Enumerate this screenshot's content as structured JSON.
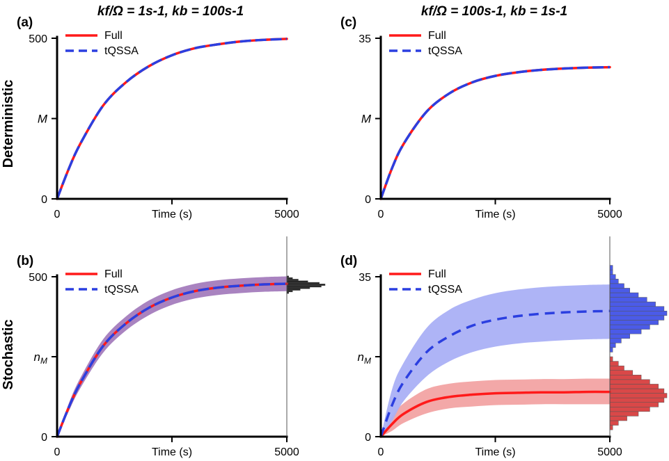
{
  "figure": {
    "column_titles": [
      {
        "line": "kf/Ω = 1s-1, kb = 100s-1"
      },
      {
        "line": "kf/Ω = 100s-1, kb = 1s-1"
      }
    ],
    "row_labels": [
      "Deterministic",
      "Stochastic"
    ]
  },
  "colors": {
    "full": "#ff1a1a",
    "tqssa": "#2b3fe0",
    "band_overlap": "#9a6db5",
    "band_full": "#f2a3a3",
    "band_tqssa": "#aab0f5",
    "hist_black": "#222222",
    "hist_blue": "#4b5be8",
    "hist_red": "#d94848"
  },
  "chart_data": [
    {
      "panel": "(a)",
      "type": "line",
      "title": "kf/Ω = 1s-1, kb = 100s-1",
      "xlabel": "Time (s)",
      "ylabel": "M",
      "xlim": [
        0,
        5000
      ],
      "ylim": [
        0,
        500
      ],
      "xticks": [
        "0",
        "5000"
      ],
      "yticks": [
        "0",
        "500"
      ],
      "legend": [
        "Full",
        "tQSSA"
      ],
      "legend_position": "top-left",
      "series": [
        {
          "name": "Full",
          "style": "solid",
          "x": [
            0,
            250,
            500,
            1000,
            1500,
            2000,
            2500,
            3000,
            3500,
            4000,
            4500,
            5000
          ],
          "y": [
            0,
            92,
            170,
            290,
            363,
            413,
            447,
            469,
            481,
            490,
            495,
            498
          ]
        },
        {
          "name": "tQSSA",
          "style": "dashed",
          "x": [
            0,
            250,
            500,
            1000,
            1500,
            2000,
            2500,
            3000,
            3500,
            4000,
            4500,
            5000
          ],
          "y": [
            0,
            92,
            170,
            290,
            363,
            413,
            447,
            469,
            481,
            490,
            495,
            498
          ]
        }
      ]
    },
    {
      "panel": "(b)",
      "type": "line",
      "xlabel": "Time (s)",
      "ylabel": "nM",
      "xlim": [
        0,
        5000
      ],
      "ylim": [
        0,
        500
      ],
      "xticks": [
        "0",
        "5000"
      ],
      "yticks": [
        "0",
        "500"
      ],
      "legend": [
        "Full",
        "tQSSA"
      ],
      "legend_position": "top-left",
      "series": [
        {
          "name": "Full",
          "style": "solid",
          "band": "overlap",
          "x": [
            0,
            250,
            500,
            1000,
            1500,
            2000,
            2500,
            3000,
            3500,
            4000,
            4500,
            5000
          ],
          "y": [
            0,
            90,
            166,
            283,
            354,
            403,
            435,
            455,
            466,
            472,
            476,
            478
          ],
          "band_low": [
            0,
            78,
            150,
            262,
            332,
            380,
            412,
            432,
            443,
            449,
            453,
            455
          ],
          "band_high": [
            0,
            102,
            182,
            304,
            376,
            426,
            458,
            478,
            489,
            495,
            499,
            501
          ]
        },
        {
          "name": "tQSSA",
          "style": "dashed",
          "x": [
            0,
            250,
            500,
            1000,
            1500,
            2000,
            2500,
            3000,
            3500,
            4000,
            4500,
            5000
          ],
          "y": [
            0,
            90,
            166,
            283,
            354,
            403,
            435,
            455,
            466,
            472,
            476,
            478
          ]
        }
      ],
      "histograms": [
        {
          "name": "Full/tQSSA (overlapping)",
          "color_key": "hist_black",
          "bins": [
            450,
            455,
            460,
            465,
            470,
            475,
            480,
            485,
            490,
            495,
            500
          ],
          "counts": [
            1,
            3,
            7,
            12,
            18,
            20,
            17,
            11,
            6,
            3,
            1
          ]
        }
      ]
    },
    {
      "panel": "(c)",
      "type": "line",
      "title": "kf/Ω = 100s-1, kb = 1s-1",
      "xlabel": "Time (s)",
      "ylabel": "M",
      "xlim": [
        0,
        5000
      ],
      "ylim": [
        0,
        35
      ],
      "xticks": [
        "0",
        "5000"
      ],
      "yticks": [
        "0",
        "35"
      ],
      "legend": [
        "Full",
        "tQSSA"
      ],
      "legend_position": "top-left",
      "series": [
        {
          "name": "Full",
          "style": "solid",
          "x": [
            0,
            250,
            500,
            1000,
            1500,
            2000,
            2500,
            3000,
            3500,
            4000,
            4500,
            5000
          ],
          "y": [
            0,
            6.8,
            12.0,
            19.0,
            23.0,
            25.4,
            26.8,
            27.6,
            28.1,
            28.4,
            28.6,
            28.7
          ]
        },
        {
          "name": "tQSSA",
          "style": "dashed",
          "x": [
            0,
            250,
            500,
            1000,
            1500,
            2000,
            2500,
            3000,
            3500,
            4000,
            4500,
            5000
          ],
          "y": [
            0,
            6.8,
            12.0,
            19.0,
            23.0,
            25.4,
            26.8,
            27.6,
            28.1,
            28.4,
            28.6,
            28.7
          ]
        }
      ]
    },
    {
      "panel": "(d)",
      "type": "line",
      "xlabel": "Time (s)",
      "ylabel": "nM",
      "xlim": [
        0,
        5000
      ],
      "ylim": [
        0,
        35
      ],
      "xticks": [
        "0",
        "5000"
      ],
      "yticks": [
        "0",
        "35"
      ],
      "legend": [
        "Full",
        "tQSSA"
      ],
      "legend_position": "top-left",
      "series": [
        {
          "name": "Full",
          "style": "solid",
          "band": "full",
          "x": [
            0,
            250,
            500,
            1000,
            1500,
            2000,
            2500,
            3000,
            3500,
            4000,
            4500,
            5000
          ],
          "y": [
            0,
            2.8,
            5.0,
            7.6,
            8.7,
            9.2,
            9.5,
            9.6,
            9.7,
            9.7,
            9.8,
            9.8
          ],
          "band_low": [
            0,
            1.3,
            3.0,
            5.1,
            6.2,
            6.6,
            6.9,
            7.0,
            7.1,
            7.1,
            7.1,
            7.1
          ],
          "band_high": [
            0,
            4.6,
            7.3,
            10.4,
            11.6,
            12.1,
            12.4,
            12.5,
            12.6,
            12.6,
            12.7,
            12.7
          ]
        },
        {
          "name": "tQSSA",
          "style": "dashed",
          "band": "tqssa",
          "x": [
            0,
            250,
            500,
            1000,
            1500,
            2000,
            2500,
            3000,
            3500,
            4000,
            4500,
            5000
          ],
          "y": [
            0,
            7.0,
            12.0,
            18.5,
            22.0,
            24.3,
            25.6,
            26.4,
            26.9,
            27.2,
            27.4,
            27.5
          ],
          "band_low": [
            0,
            3.5,
            7.8,
            13.2,
            16.5,
            18.5,
            19.7,
            20.4,
            20.8,
            21.1,
            21.3,
            21.4
          ],
          "band_high": [
            0,
            10.5,
            16.2,
            23.8,
            27.8,
            30.0,
            31.4,
            32.2,
            32.7,
            33.0,
            33.2,
            33.3
          ]
        }
      ],
      "histograms": [
        {
          "name": "tQSSA",
          "color_key": "hist_blue",
          "bins": [
            19,
            20,
            21,
            22,
            23,
            24,
            25,
            26,
            27,
            28,
            29,
            30,
            31,
            32,
            33,
            34,
            35,
            36,
            37
          ],
          "counts": [
            1,
            2,
            4,
            7,
            11,
            14,
            17,
            19,
            20,
            19,
            16,
            13,
            10,
            7,
            5,
            3,
            2,
            1,
            1
          ]
        },
        {
          "name": "Full",
          "color_key": "hist_red",
          "bins": [
            2,
            3,
            4,
            5,
            6,
            7,
            8,
            9,
            10,
            11,
            12,
            13,
            14,
            15,
            16,
            17
          ],
          "counts": [
            1,
            3,
            6,
            10,
            14,
            17,
            19,
            20,
            19,
            17,
            14,
            11,
            8,
            5,
            3,
            1
          ]
        }
      ]
    }
  ]
}
